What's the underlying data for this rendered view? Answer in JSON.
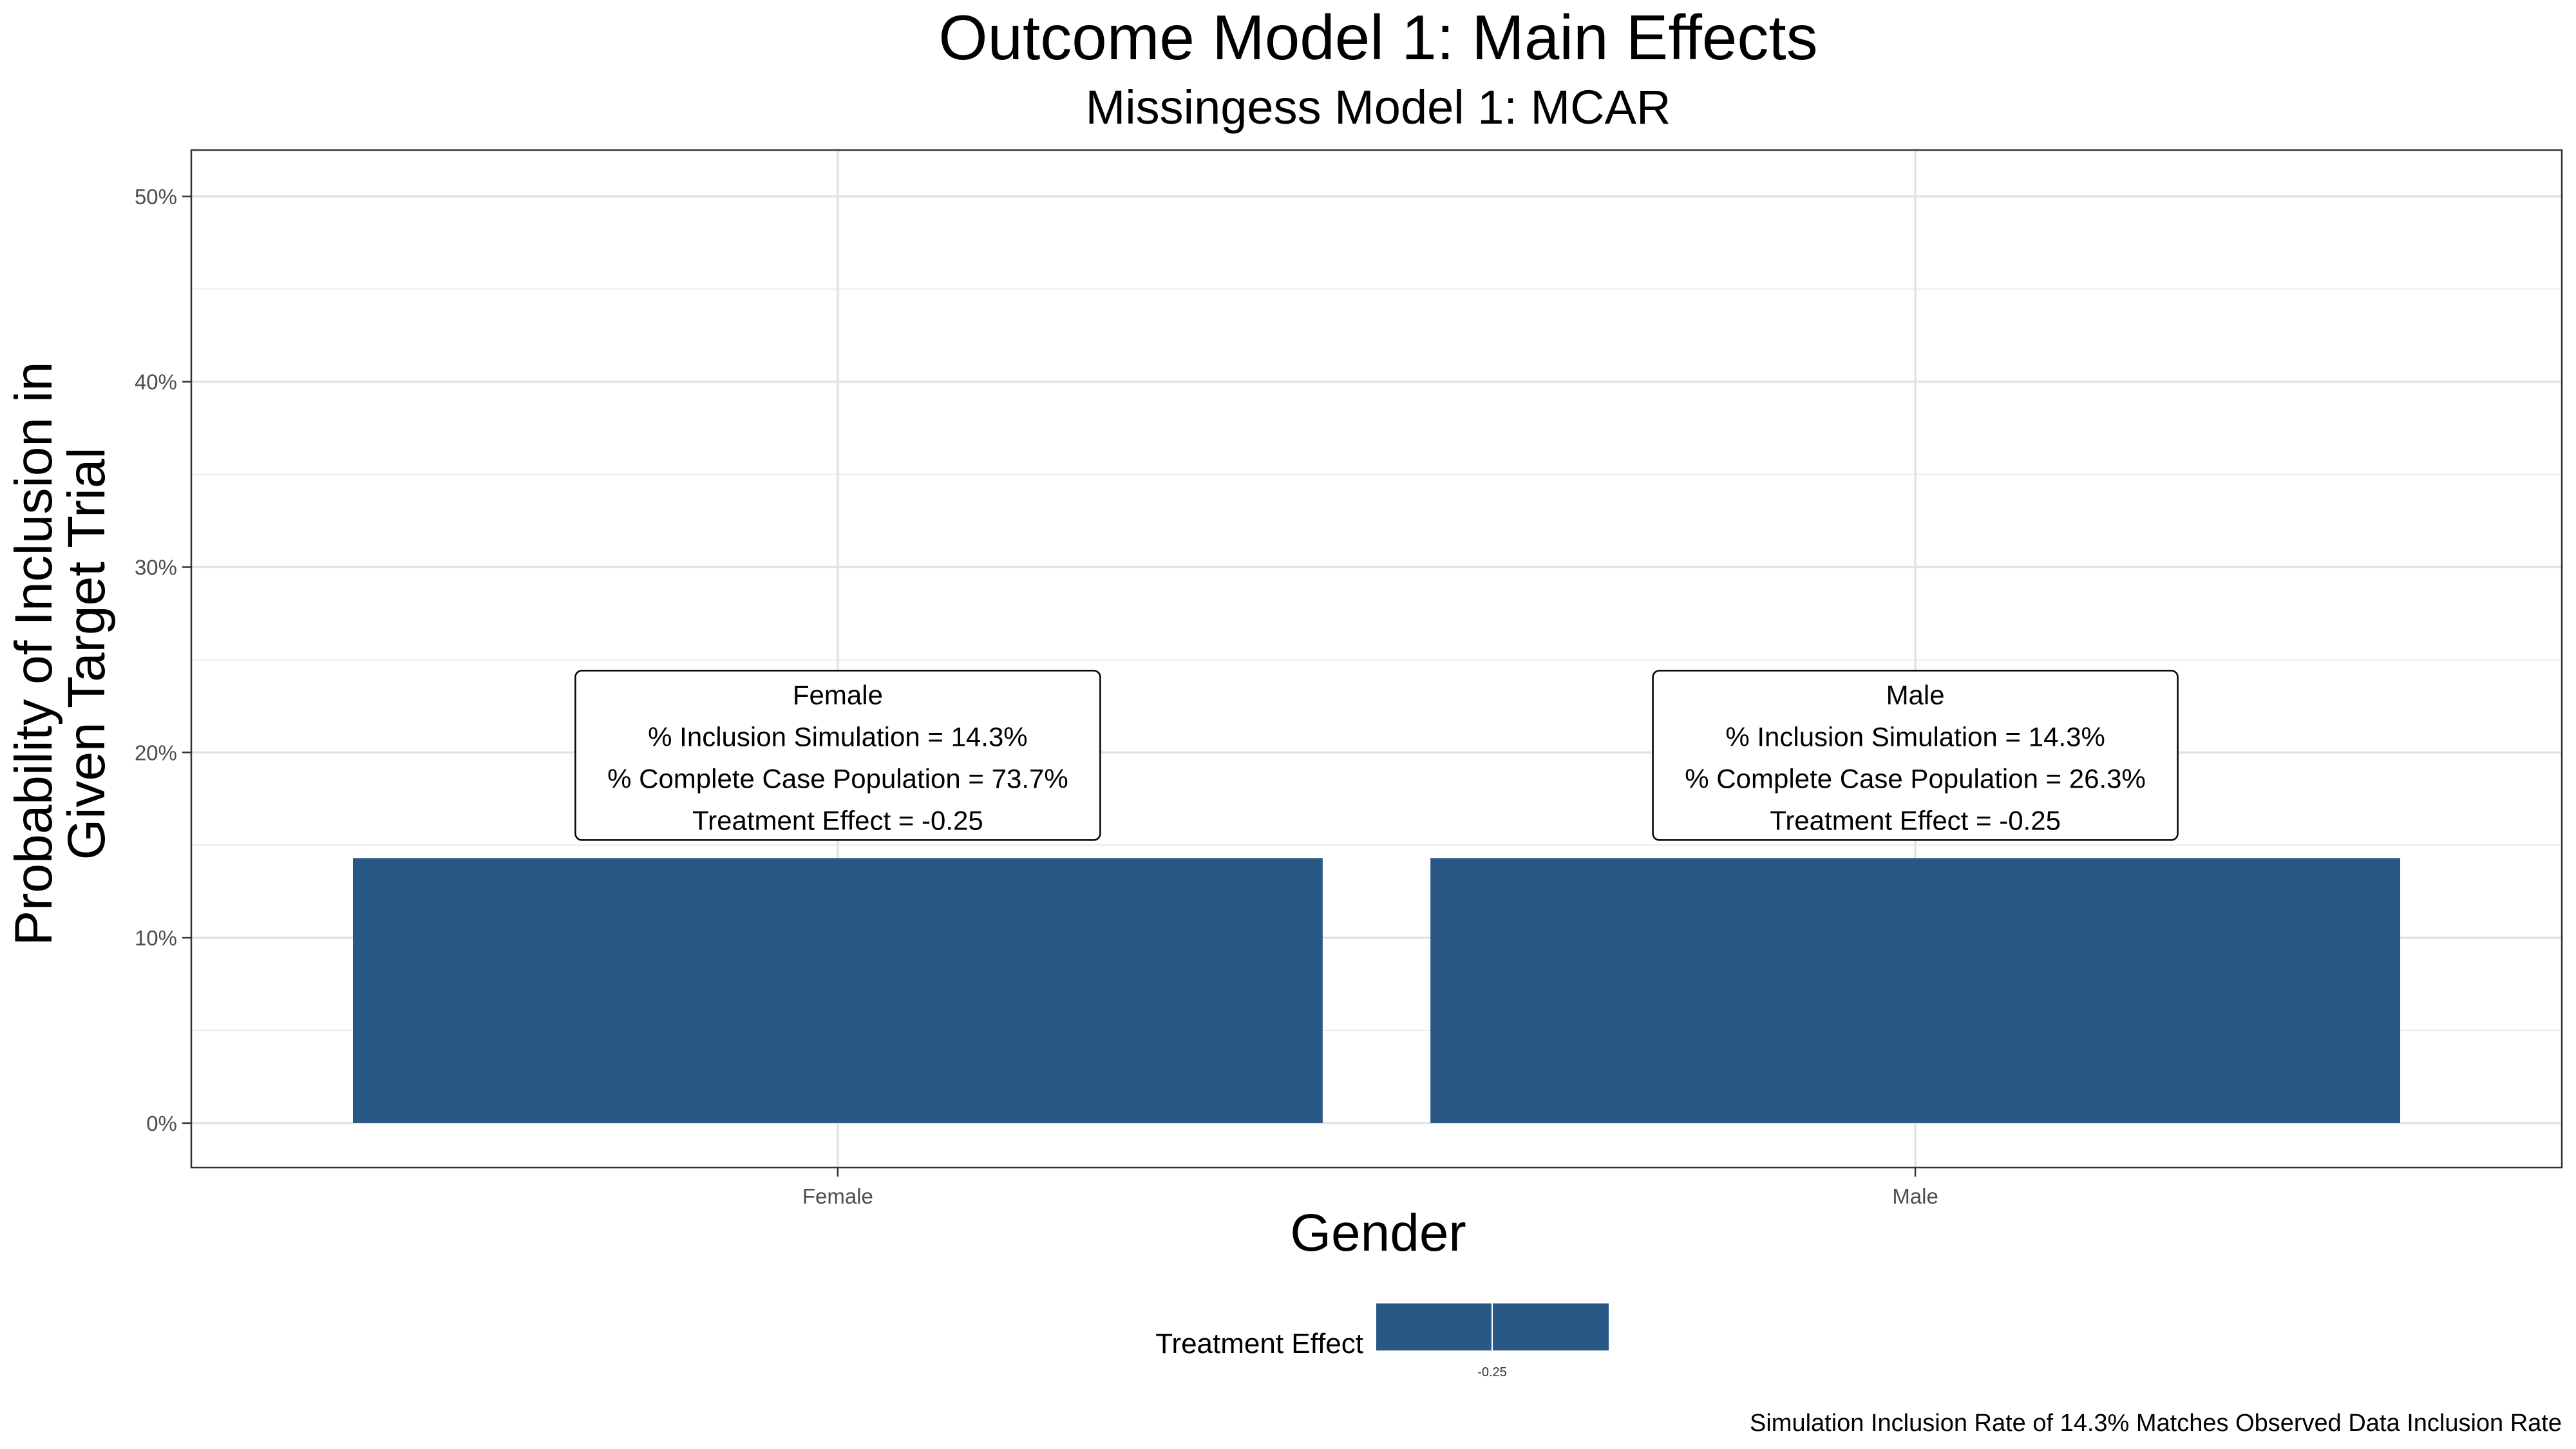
{
  "chart_data": {
    "type": "bar",
    "title": "Outcome Model 1: Main Effects",
    "subtitle": "Missingess Model 1: MCAR",
    "xlabel": "Gender",
    "ylabel_lines": [
      "Probability of Inclusion in",
      "Given Target Trial"
    ],
    "categories": [
      "Female",
      "Male"
    ],
    "values": [
      14.3,
      14.3
    ],
    "ylim": [
      -2.4,
      52.5
    ],
    "yticks": [
      0,
      10,
      20,
      30,
      40,
      50
    ],
    "ytick_labels": [
      "0%",
      "10%",
      "20%",
      "30%",
      "40%",
      "50%"
    ],
    "grid": true,
    "bar_color": "#2a5886",
    "annotations": [
      {
        "category": "Female",
        "lines": [
          "Female",
          "% Inclusion Simulation = 14.3%",
          "% Complete Case Population = 73.7%",
          "Treatment Effect = -0.25"
        ]
      },
      {
        "category": "Male",
        "lines": [
          "Male",
          "% Inclusion Simulation = 14.3%",
          "% Complete Case Population = 26.3%",
          "Treatment Effect = -0.25"
        ]
      }
    ],
    "legend": {
      "title": "Treatment Effect",
      "value_label": "-0.25",
      "placement": "bottom",
      "color": "#2a5886"
    },
    "caption": "Simulation Inclusion Rate of 14.3% Matches Observed Data Inclusion Rate"
  }
}
